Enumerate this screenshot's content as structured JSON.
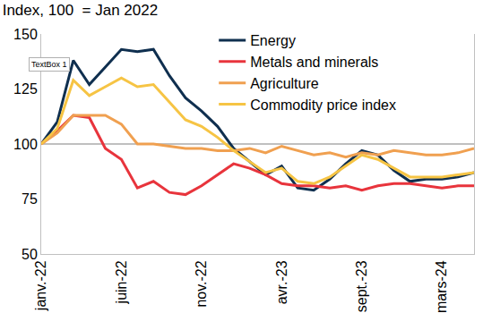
{
  "chart_data": {
    "type": "line",
    "title": "Index, 100  = Jan 2022",
    "annotations": [
      "TextBox 1"
    ],
    "categories": [
      "janv.-22",
      null,
      null,
      null,
      null,
      "juin-22",
      null,
      null,
      null,
      null,
      "nov.-22",
      null,
      null,
      null,
      null,
      "avr.-23",
      null,
      null,
      null,
      null,
      "sept.-23",
      null,
      null,
      null,
      null,
      "mars-24",
      null,
      null
    ],
    "series": [
      {
        "name": "Energy",
        "color": "#0f2f4f",
        "values": [
          100,
          110,
          138,
          127,
          135,
          143,
          142,
          143,
          131,
          121,
          115,
          108,
          98,
          92,
          86,
          90,
          80,
          79,
          84,
          91,
          97,
          95,
          88,
          83,
          84,
          84,
          85,
          87
        ]
      },
      {
        "name": "Metals and minerals",
        "color": "#e8343c",
        "values": [
          100,
          106,
          113,
          112,
          98,
          93,
          80,
          83,
          78,
          77,
          81,
          86,
          91,
          89,
          86,
          82,
          81,
          81,
          80,
          81,
          79,
          81,
          82,
          82,
          81,
          80,
          81,
          81
        ]
      },
      {
        "name": "Agriculture",
        "color": "#f0a050",
        "values": [
          100,
          105,
          113,
          113,
          113,
          109,
          100,
          100,
          99,
          98,
          98,
          97,
          97,
          98,
          96,
          99,
          97,
          95,
          96,
          94,
          96,
          95,
          97,
          96,
          95,
          95,
          96,
          98
        ]
      },
      {
        "name": "Commodity price index",
        "color": "#f6c444",
        "values": [
          100,
          107,
          129,
          122,
          126,
          130,
          126,
          127,
          119,
          111,
          108,
          103,
          97,
          92,
          87,
          89,
          83,
          82,
          85,
          90,
          95,
          93,
          89,
          85,
          85,
          85,
          86,
          87
        ]
      }
    ],
    "baseline": 100,
    "ylim": [
      50,
      150
    ],
    "yticks": [
      50,
      75,
      100,
      125,
      150
    ],
    "grid": false,
    "legend": "top right"
  }
}
